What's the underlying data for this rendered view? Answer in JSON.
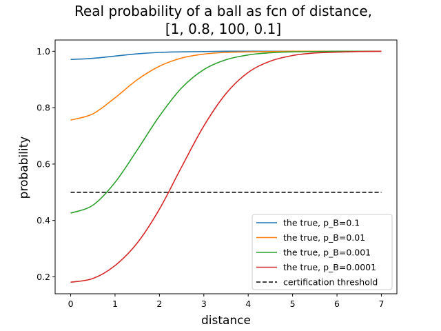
{
  "chart_data": {
    "type": "line",
    "title_lines": [
      "Real probability of a ball as fcn of distance,",
      "[1, 0.8, 100, 0.1]"
    ],
    "xlabel": "distance",
    "ylabel": "probability",
    "xlim": [
      -0.35,
      7.35
    ],
    "ylim": [
      0.14,
      1.04
    ],
    "xticks": [
      0,
      1,
      2,
      3,
      4,
      5,
      6,
      7
    ],
    "yticks": [
      0.2,
      0.4,
      0.6,
      0.8,
      1.0
    ],
    "xtick_labels": [
      "0",
      "1",
      "2",
      "3",
      "4",
      "5",
      "6",
      "7"
    ],
    "ytick_labels": [
      "0.2",
      "0.4",
      "0.6",
      "0.8",
      "1.0"
    ],
    "grid": false,
    "legend_position": "lower-right",
    "x": [
      0,
      0.5,
      1,
      1.5,
      2,
      2.5,
      3,
      3.5,
      4,
      4.5,
      5,
      5.5,
      6,
      6.5,
      7
    ],
    "series": [
      {
        "name": "the true, p_B=0.1",
        "color": "#1f77b4",
        "style": "solid",
        "values": [
          0.971,
          0.975,
          0.983,
          0.991,
          0.996,
          0.998,
          0.999,
          1.0,
          1.0,
          1.0,
          1.0,
          1.0,
          1.0,
          1.0,
          1.0
        ]
      },
      {
        "name": "the true, p_B=0.01",
        "color": "#ff7f0e",
        "style": "solid",
        "values": [
          0.756,
          0.778,
          0.835,
          0.899,
          0.947,
          0.976,
          0.99,
          0.996,
          0.998,
          0.999,
          1.0,
          1.0,
          1.0,
          1.0,
          1.0
        ]
      },
      {
        "name": "the true, p_B=0.001",
        "color": "#2ca02c",
        "style": "solid",
        "values": [
          0.426,
          0.454,
          0.535,
          0.65,
          0.77,
          0.87,
          0.935,
          0.97,
          0.987,
          0.995,
          0.998,
          0.999,
          1.0,
          1.0,
          1.0
        ]
      },
      {
        "name": "the true, p_B=0.0001",
        "color": "#d62728",
        "style": "solid",
        "values": [
          0.181,
          0.194,
          0.24,
          0.32,
          0.44,
          0.59,
          0.735,
          0.85,
          0.925,
          0.965,
          0.985,
          0.994,
          0.997,
          0.999,
          1.0
        ]
      },
      {
        "name": "certification threshold",
        "color": "#000000",
        "style": "dashed",
        "values": [
          0.5,
          0.5,
          0.5,
          0.5,
          0.5,
          0.5,
          0.5,
          0.5,
          0.5,
          0.5,
          0.5,
          0.5,
          0.5,
          0.5,
          0.5
        ]
      }
    ]
  }
}
